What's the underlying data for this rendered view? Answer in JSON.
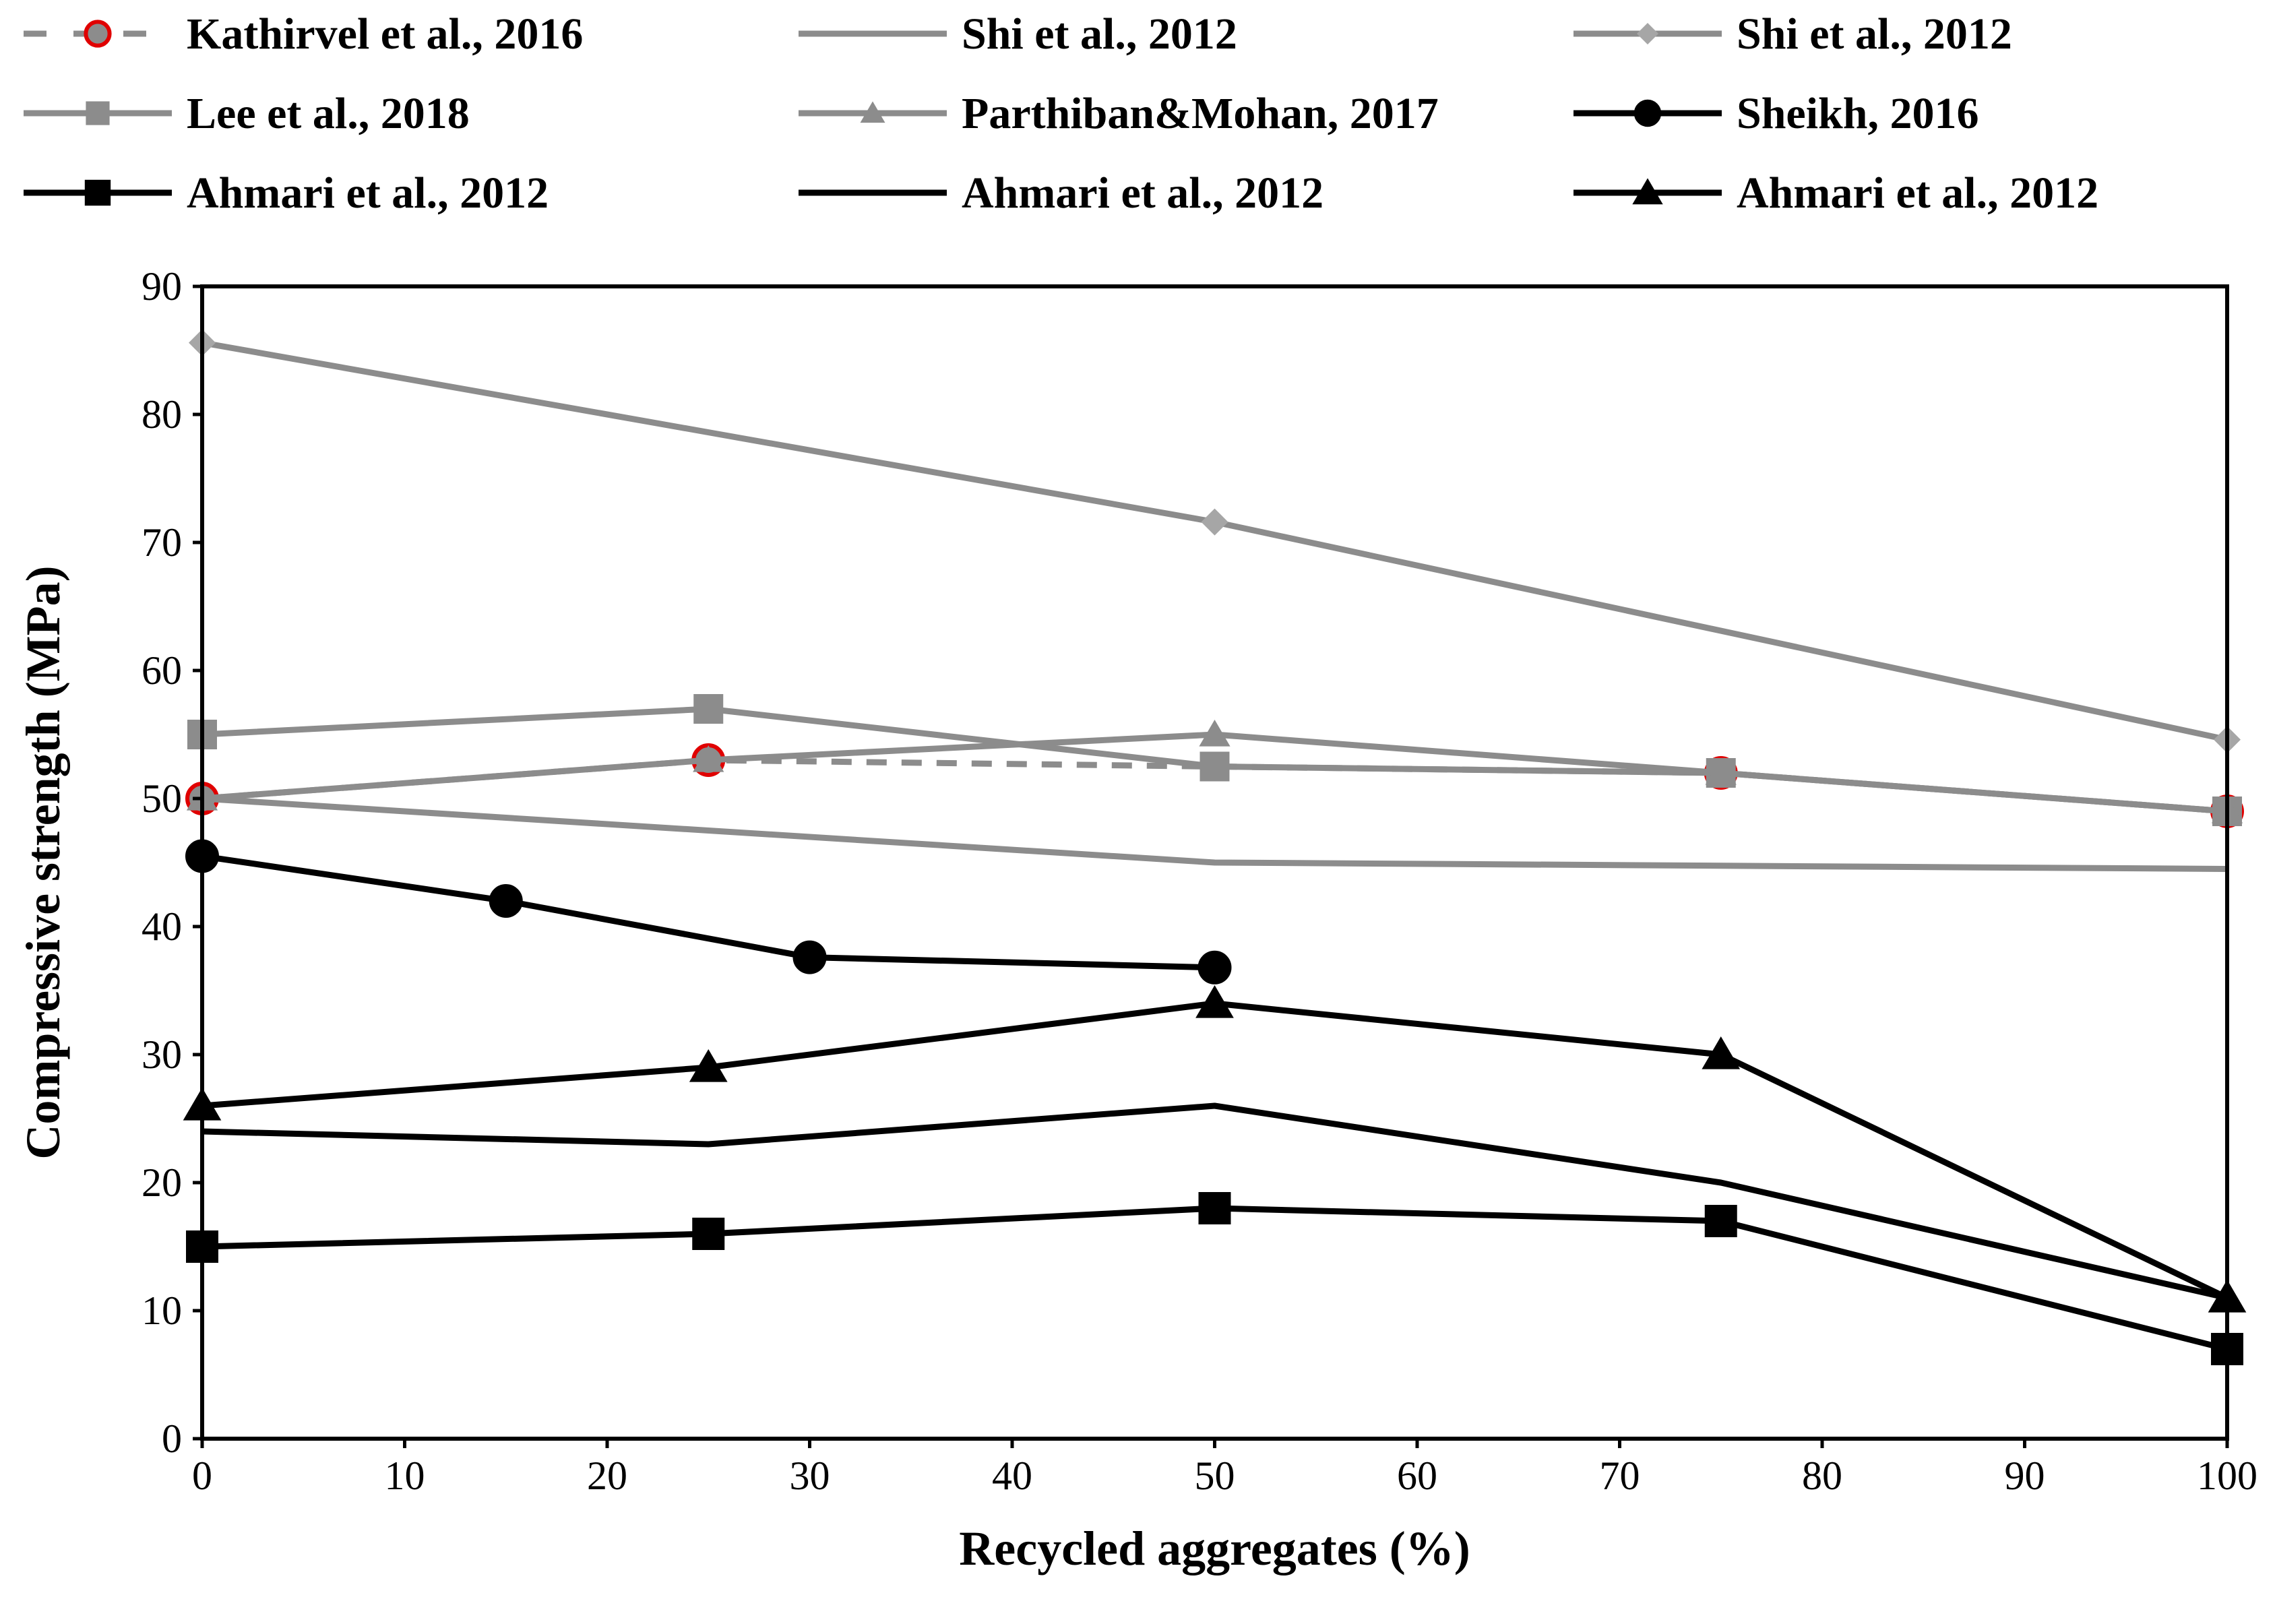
{
  "chart_data": {
    "type": "line",
    "title": "",
    "xlabel": "Recycled aggregates (%)",
    "ylabel": "Compressive strength (MPa)",
    "xlim": [
      0,
      100
    ],
    "ylim": [
      0,
      90
    ],
    "xticks": [
      "0",
      "10",
      "20",
      "30",
      "40",
      "50",
      "60",
      "70",
      "80",
      "90",
      "100"
    ],
    "yticks": [
      "0",
      "10",
      "20",
      "30",
      "40",
      "50",
      "60",
      "70",
      "80",
      "90"
    ],
    "grid": false,
    "legend_position": "top",
    "colors": {
      "gray": "#8c8c8c",
      "light_gray": "#a6a6a6",
      "black": "#000000",
      "red": "#e00000"
    },
    "series": [
      {
        "id": "kathirvel",
        "name": "Kathirvel et al., 2016",
        "color": "#8c8c8c",
        "line": "dashed",
        "marker": "circle-red",
        "x": [
          0,
          25,
          75,
          100
        ],
        "y": [
          50,
          53,
          52,
          49
        ]
      },
      {
        "id": "shi-line",
        "name": "Shi et al., 2012",
        "color": "#8c8c8c",
        "line": "solid",
        "marker": "none",
        "x": [
          0,
          50,
          100
        ],
        "y": [
          50,
          45,
          44.5
        ]
      },
      {
        "id": "shi-diamond",
        "name": "Shi et al., 2012",
        "color": "#8c8c8c",
        "line": "solid",
        "marker": "diamond",
        "x": [
          0,
          50,
          100
        ],
        "y": [
          85.6,
          71.6,
          54.6
        ]
      },
      {
        "id": "lee",
        "name": "Lee et al., 2018",
        "color": "#8c8c8c",
        "line": "solid",
        "marker": "square",
        "x": [
          0,
          25,
          50,
          75,
          100
        ],
        "y": [
          55,
          57,
          52.5,
          52,
          49
        ]
      },
      {
        "id": "parthiban",
        "name": "Parthiban&Mohan, 2017",
        "color": "#8c8c8c",
        "line": "solid",
        "marker": "triangle",
        "x": [
          0,
          25,
          50,
          75,
          100
        ],
        "y": [
          50,
          53,
          55,
          52,
          49
        ]
      },
      {
        "id": "sheikh",
        "name": "Sheikh, 2016",
        "color": "#000000",
        "line": "solid",
        "marker": "circle",
        "x": [
          0,
          15,
          30,
          50
        ],
        "y": [
          45.5,
          42,
          37.6,
          36.8
        ]
      },
      {
        "id": "ahmari-square",
        "name": "Ahmari et al., 2012",
        "color": "#000000",
        "line": "solid",
        "marker": "square",
        "x": [
          0,
          25,
          50,
          75,
          100
        ],
        "y": [
          15,
          16,
          18,
          17,
          7
        ]
      },
      {
        "id": "ahmari-line",
        "name": "Ahmari et al., 2012",
        "color": "#000000",
        "line": "solid",
        "marker": "none",
        "x": [
          0,
          25,
          50,
          75,
          100
        ],
        "y": [
          24,
          23,
          26,
          20,
          11
        ]
      },
      {
        "id": "ahmari-triangle",
        "name": "Ahmari et al., 2012",
        "color": "#000000",
        "line": "solid",
        "marker": "triangle",
        "x": [
          0,
          25,
          50,
          75,
          100
        ],
        "y": [
          26,
          29,
          34,
          30,
          11
        ]
      }
    ]
  }
}
